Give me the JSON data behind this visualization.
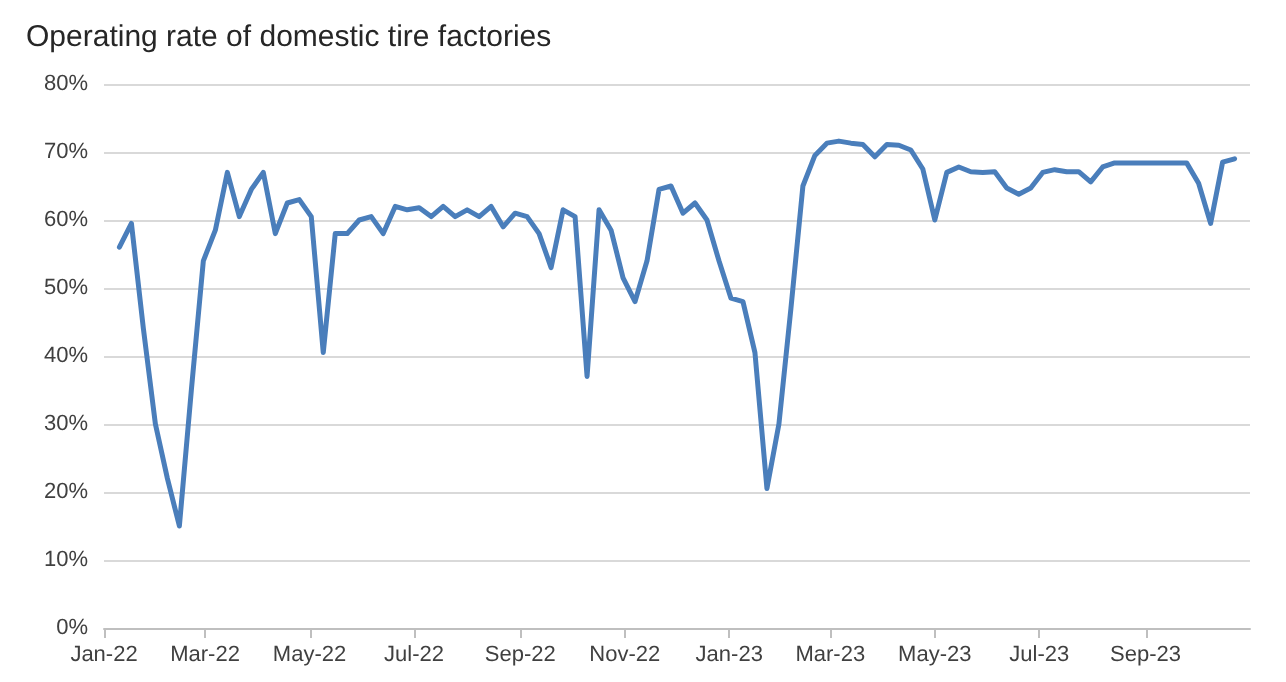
{
  "chart_data": {
    "type": "line",
    "title": "Operating rate of domestic tire factories",
    "x": [
      "2022-01-10",
      "2022-01-17",
      "2022-01-24",
      "2022-01-31",
      "2022-02-07",
      "2022-02-14",
      "2022-02-21",
      "2022-02-28",
      "2022-03-07",
      "2022-03-14",
      "2022-03-21",
      "2022-03-28",
      "2022-04-04",
      "2022-04-11",
      "2022-04-18",
      "2022-04-25",
      "2022-05-02",
      "2022-05-09",
      "2022-05-16",
      "2022-05-23",
      "2022-05-30",
      "2022-06-06",
      "2022-06-13",
      "2022-06-20",
      "2022-06-27",
      "2022-07-04",
      "2022-07-11",
      "2022-07-18",
      "2022-07-25",
      "2022-08-01",
      "2022-08-08",
      "2022-08-15",
      "2022-08-22",
      "2022-08-29",
      "2022-09-05",
      "2022-09-12",
      "2022-09-19",
      "2022-09-26",
      "2022-10-03",
      "2022-10-10",
      "2022-10-17",
      "2022-10-24",
      "2022-10-31",
      "2022-11-07",
      "2022-11-14",
      "2022-11-21",
      "2022-11-28",
      "2022-12-05",
      "2022-12-12",
      "2022-12-19",
      "2022-12-26",
      "2023-01-02",
      "2023-01-09",
      "2023-01-16",
      "2023-01-23",
      "2023-01-30",
      "2023-02-06",
      "2023-02-13",
      "2023-02-20",
      "2023-02-27",
      "2023-03-06",
      "2023-03-13",
      "2023-03-20",
      "2023-03-27",
      "2023-04-03",
      "2023-04-10",
      "2023-04-17",
      "2023-04-24",
      "2023-05-01",
      "2023-05-08",
      "2023-05-15",
      "2023-05-22",
      "2023-05-29",
      "2023-06-05",
      "2023-06-12",
      "2023-06-19",
      "2023-06-26",
      "2023-07-03",
      "2023-07-10",
      "2023-07-17",
      "2023-07-24",
      "2023-07-31",
      "2023-08-07",
      "2023-08-14",
      "2023-08-21",
      "2023-08-28",
      "2023-09-04",
      "2023-09-11",
      "2023-09-18",
      "2023-09-25",
      "2023-10-02",
      "2023-10-09",
      "2023-10-16",
      "2023-10-23"
    ],
    "series": [
      {
        "color": "#4a7ebb",
        "values": [
          56,
          59.5,
          44,
          30,
          22,
          15,
          35,
          54,
          58.5,
          67,
          60.5,
          64.5,
          67,
          58,
          62.5,
          63,
          60.5,
          40.5,
          58,
          58,
          60,
          60.5,
          58,
          62,
          61.5,
          61.8,
          60.5,
          62,
          60.5,
          61.5,
          60.5,
          62,
          59,
          61,
          60.5,
          58,
          53,
          61.5,
          60.5,
          37,
          61.5,
          58.5,
          51.5,
          48,
          54,
          64.5,
          65,
          61,
          62.5,
          60,
          54,
          48.5,
          48,
          40.5,
          20.5,
          30,
          47,
          65,
          69.5,
          71.3,
          71.6,
          71.3,
          71.1,
          69.3,
          71.1,
          71,
          70.3,
          67.5,
          60,
          67,
          67.8,
          67.1,
          67,
          67.1,
          64.7,
          63.8,
          64.7,
          67,
          67.4,
          67.1,
          67.1,
          65.6,
          67.8,
          68.4,
          68.4,
          68.4,
          68.4,
          68.4,
          68.4,
          68.4,
          65.4,
          59.5,
          68.5,
          69
        ]
      }
    ],
    "xlim": [
      "2022-01-01",
      "2023-11-01"
    ],
    "xticks": [
      {
        "value": "2022-01-01",
        "label": "Jan-22"
      },
      {
        "value": "2022-03-01",
        "label": "Mar-22"
      },
      {
        "value": "2022-05-01",
        "label": "May-22"
      },
      {
        "value": "2022-07-01",
        "label": "Jul-22"
      },
      {
        "value": "2022-09-01",
        "label": "Sep-22"
      },
      {
        "value": "2022-11-01",
        "label": "Nov-22"
      },
      {
        "value": "2023-01-01",
        "label": "Jan-23"
      },
      {
        "value": "2023-03-01",
        "label": "Mar-23"
      },
      {
        "value": "2023-05-01",
        "label": "May-23"
      },
      {
        "value": "2023-07-01",
        "label": "Jul-23"
      },
      {
        "value": "2023-09-01",
        "label": "Sep-23"
      }
    ],
    "ylim": [
      0,
      80
    ],
    "yticks": [
      {
        "value": 0,
        "label": "0%"
      },
      {
        "value": 10,
        "label": "10%"
      },
      {
        "value": 20,
        "label": "20%"
      },
      {
        "value": 30,
        "label": "30%"
      },
      {
        "value": 40,
        "label": "40%"
      },
      {
        "value": 50,
        "label": "50%"
      },
      {
        "value": 60,
        "label": "60%"
      },
      {
        "value": 70,
        "label": "70%"
      },
      {
        "value": 80,
        "label": "80%"
      }
    ],
    "grid": "y",
    "marker": "none",
    "line_style": "solid"
  }
}
